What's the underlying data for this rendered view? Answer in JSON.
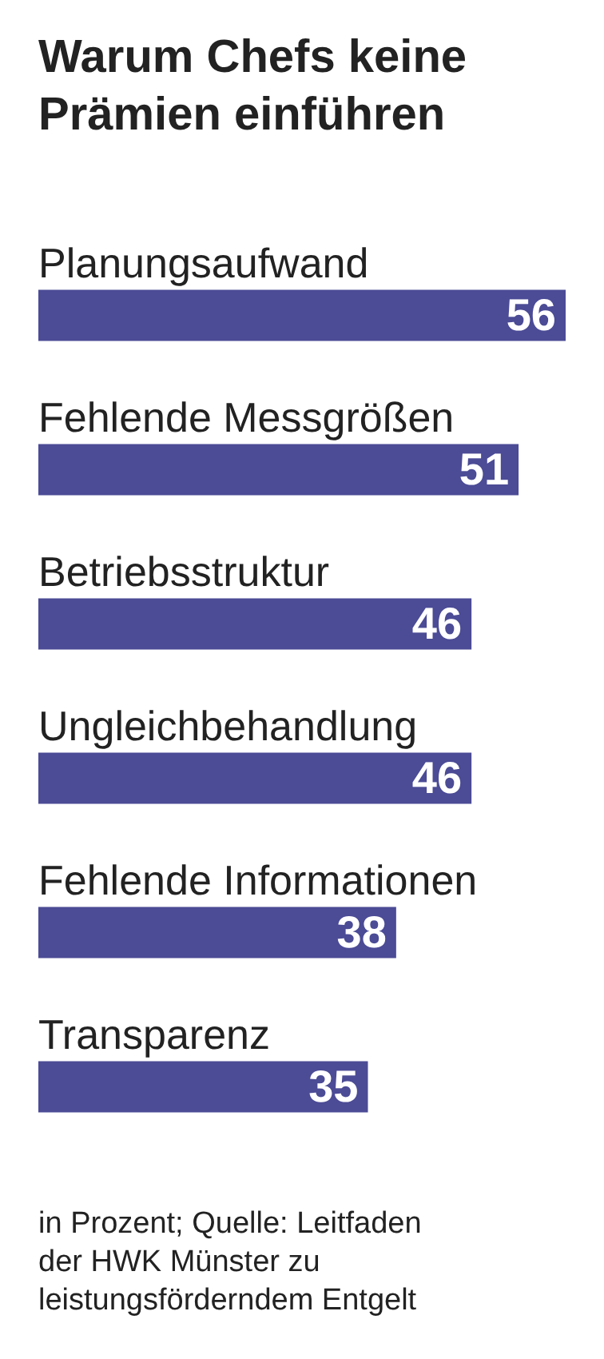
{
  "chart_data": {
    "type": "bar",
    "orientation": "horizontal",
    "title": "Warum Chefs keine Prämien einführen",
    "categories": [
      "Planungsaufwand",
      "Fehlende Messgrößen",
      "Betriebsstruktur",
      "Ungleichbehandlung",
      "Fehlende Informationen",
      "Transparenz"
    ],
    "values": [
      56,
      51,
      46,
      46,
      38,
      35
    ],
    "color": "#4b4b96",
    "data_labels": true,
    "annotations": [
      "in Prozent; Quelle: Leitfaden der HWK Münster zu leistungsförderndem Entgelt"
    ]
  }
}
